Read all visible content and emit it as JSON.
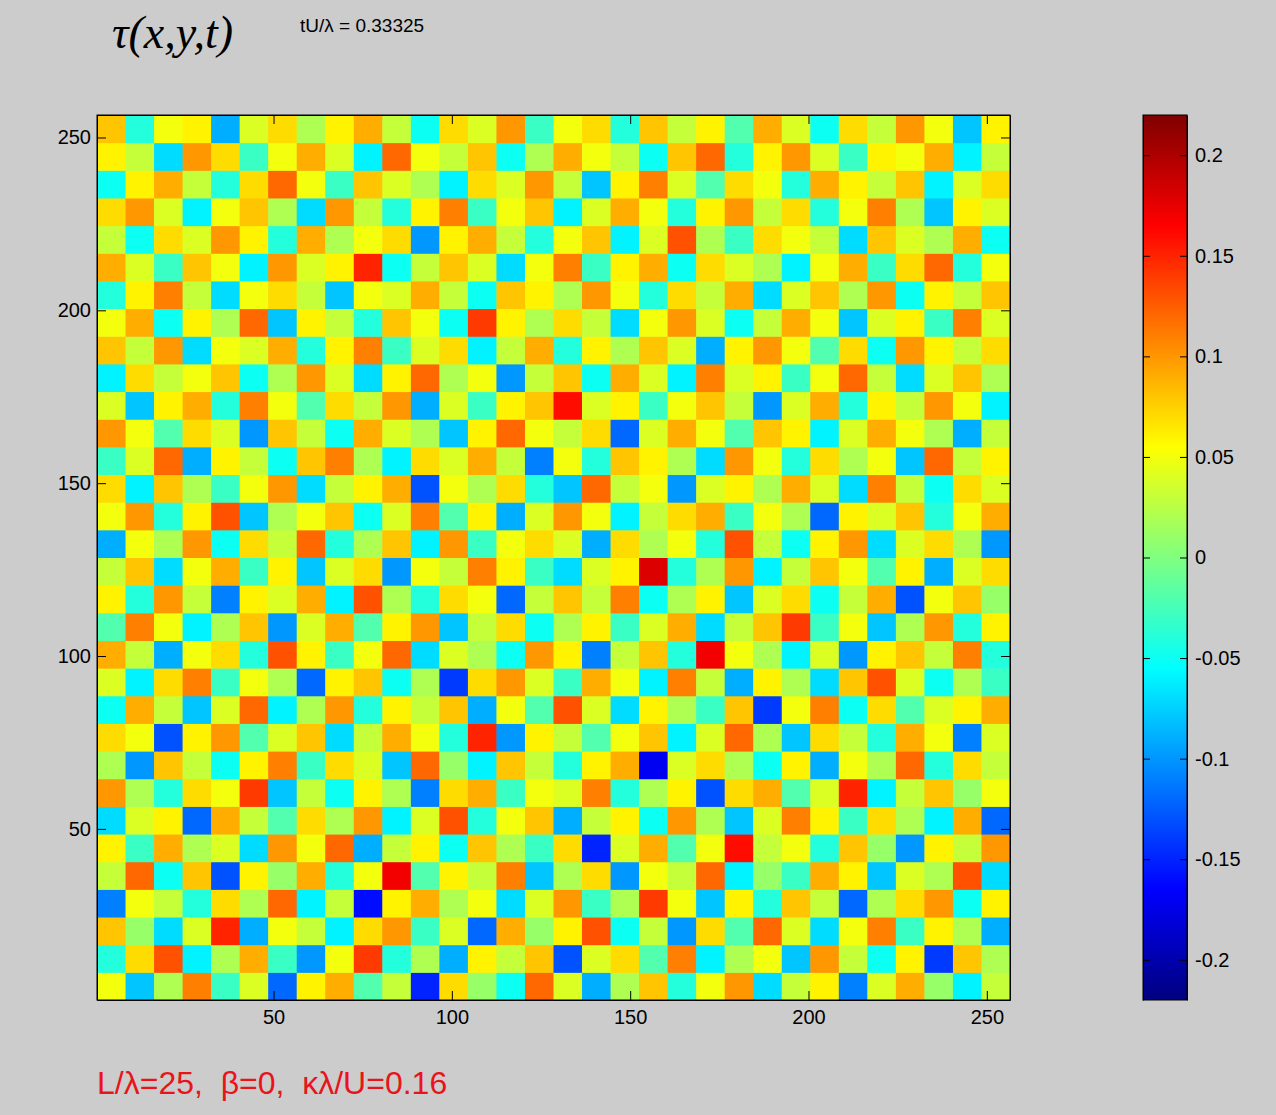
{
  "chart_data": {
    "type": "heatmap",
    "title": "τ(x,y,t)",
    "subtitle": "tU/λ = 0.33325",
    "annotation": "L/λ=25,  β=0,  κλ/U=0.16",
    "xlim": [
      0.5,
      256.5
    ],
    "xticks": [
      50,
      100,
      150,
      200,
      250
    ],
    "ylim": [
      0.5,
      256.5
    ],
    "yticks": [
      50,
      100,
      150,
      200,
      250
    ],
    "x": [
      4.5,
      12.5,
      20.5,
      28.5,
      36.5,
      44.5,
      52.5,
      60.5,
      68.5,
      76.5,
      84.5,
      92.5,
      100.5,
      108.5,
      116.5,
      124.5,
      132.5,
      140.5,
      148.5,
      156.5,
      164.5,
      172.5,
      180.5,
      188.5,
      196.5,
      204.5,
      212.5,
      220.5,
      228.5,
      236.5,
      244.5,
      252.5
    ],
    "y": [
      4.5,
      12.5,
      20.5,
      28.5,
      36.5,
      44.5,
      52.5,
      60.5,
      68.5,
      76.5,
      84.5,
      92.5,
      100.5,
      108.5,
      116.5,
      124.5,
      132.5,
      140.5,
      148.5,
      156.5,
      164.5,
      172.5,
      180.5,
      188.5,
      196.5,
      204.5,
      212.5,
      220.5,
      228.5,
      236.5,
      244.5,
      252.5
    ],
    "cells": [
      [
        0.05,
        -0.08,
        0.02,
        0.11,
        -0.03,
        0.04,
        -0.12,
        0.06,
        0.09,
        -0.02,
        0.03,
        -0.15,
        0.07,
        0.01,
        -0.05,
        0.12,
        0.04,
        -0.09,
        0.02,
        0.08,
        -0.04,
        0.05,
        0.1,
        -0.07,
        0.03,
        0.06,
        -0.11,
        0.04,
        0.09,
        0.01,
        -0.06,
        0.03
      ],
      [
        -0.04,
        0.07,
        0.13,
        -0.06,
        0.02,
        0.09,
        -0.03,
        -0.1,
        0.05,
        0.14,
        -0.04,
        0.02,
        -0.09,
        0.06,
        0.03,
        0.08,
        -0.13,
        0.04,
        0.07,
        -0.02,
        0.11,
        -0.06,
        0.02,
        0.05,
        -0.08,
        0.1,
        0.03,
        -0.05,
        0.06,
        -0.14,
        0.08,
        0.02
      ],
      [
        0.08,
        0.01,
        -0.07,
        0.04,
        0.15,
        -0.09,
        0.05,
        0.03,
        -0.06,
        0.07,
        0.1,
        -0.03,
        0.04,
        -0.12,
        0.09,
        0.01,
        0.06,
        0.13,
        -0.05,
        0.03,
        -0.1,
        0.07,
        -0.02,
        0.12,
        0.04,
        -0.07,
        0.05,
        0.11,
        -0.03,
        0.06,
        0.02,
        -0.09
      ],
      [
        -0.11,
        0.05,
        0.03,
        -0.04,
        0.07,
        0.02,
        0.12,
        -0.06,
        0.03,
        -0.16,
        0.06,
        0.09,
        0.02,
        0.05,
        -0.07,
        0.04,
        0.1,
        -0.03,
        0.02,
        0.14,
        0.05,
        -0.08,
        0.06,
        -0.04,
        0.08,
        0.03,
        -0.12,
        0.02,
        0.07,
        0.1,
        -0.05,
        0.06
      ],
      [
        0.03,
        0.12,
        -0.05,
        0.08,
        -0.13,
        0.06,
        0.01,
        0.09,
        -0.04,
        0.05,
        0.17,
        -0.02,
        0.06,
        0.03,
        0.11,
        -0.08,
        0.02,
        0.07,
        -0.1,
        0.05,
        0.03,
        0.12,
        -0.06,
        0.01,
        -0.03,
        0.09,
        0.06,
        -0.08,
        0.04,
        0.02,
        0.13,
        -0.07
      ],
      [
        0.06,
        -0.03,
        0.09,
        0.02,
        0.04,
        -0.07,
        0.1,
        0.05,
        0.12,
        -0.09,
        0.03,
        0.06,
        -0.05,
        0.08,
        0.02,
        -0.03,
        0.07,
        -0.15,
        0.04,
        0.09,
        -0.02,
        0.05,
        0.16,
        0.03,
        0.05,
        -0.04,
        0.08,
        0.01,
        -0.1,
        0.06,
        0.03,
        0.1
      ],
      [
        -0.07,
        0.04,
        0.06,
        -0.12,
        0.09,
        0.03,
        -0.02,
        0.07,
        0.02,
        0.1,
        -0.06,
        0.04,
        0.13,
        -0.04,
        0.05,
        0.08,
        -0.09,
        0.03,
        0.06,
        -0.05,
        0.1,
        0.02,
        -0.08,
        0.04,
        0.11,
        0.06,
        -0.03,
        0.07,
        0.02,
        -0.06,
        0.09,
        -0.12
      ],
      [
        0.1,
        0.02,
        -0.04,
        0.07,
        0.05,
        0.14,
        -0.08,
        0.03,
        -0.05,
        0.06,
        0.02,
        -0.11,
        0.07,
        0.09,
        -0.03,
        0.05,
        0.04,
        0.11,
        -0.04,
        0.02,
        0.06,
        -0.13,
        0.07,
        0.09,
        -0.02,
        0.04,
        0.15,
        -0.06,
        0.03,
        0.08,
        0.01,
        0.05
      ],
      [
        0.02,
        -0.1,
        0.08,
        0.03,
        -0.05,
        0.06,
        0.11,
        -0.03,
        0.07,
        0.04,
        -0.08,
        0.12,
        0.01,
        -0.06,
        0.08,
        0.03,
        -0.04,
        0.06,
        0.09,
        -0.17,
        0.04,
        0.07,
        0.02,
        -0.05,
        0.06,
        -0.09,
        0.05,
        0.02,
        0.12,
        -0.04,
        0.07,
        0.03
      ],
      [
        0.07,
        0.05,
        -0.13,
        0.06,
        0.1,
        -0.02,
        0.04,
        0.08,
        -0.07,
        0.03,
        0.09,
        0.05,
        -0.04,
        0.15,
        -0.1,
        0.06,
        0.03,
        -0.02,
        0.05,
        0.08,
        -0.06,
        0.04,
        0.12,
        0.02,
        -0.08,
        0.07,
        0.03,
        -0.04,
        0.09,
        0.05,
        -0.11,
        0.04
      ],
      [
        -0.05,
        0.09,
        0.03,
        -0.08,
        0.04,
        0.12,
        -0.06,
        0.02,
        0.1,
        -0.04,
        0.06,
        0.03,
        0.08,
        -0.09,
        0.05,
        -0.02,
        0.13,
        0.04,
        -0.07,
        0.06,
        0.02,
        -0.03,
        0.08,
        -0.14,
        0.05,
        0.11,
        -0.05,
        0.07,
        -0.02,
        0.04,
        0.06,
        0.09
      ],
      [
        0.04,
        -0.06,
        0.07,
        0.11,
        -0.03,
        0.05,
        0.02,
        -0.12,
        0.06,
        0.08,
        -0.05,
        0.02,
        -0.14,
        0.07,
        0.1,
        0.04,
        -0.03,
        0.09,
        0.05,
        -0.06,
        0.11,
        0.03,
        -0.09,
        0.06,
        0.02,
        -0.07,
        0.08,
        0.13,
        0.04,
        -0.05,
        0.02,
        -0.03
      ],
      [
        0.09,
        0.03,
        -0.09,
        0.05,
        0.07,
        -0.04,
        0.13,
        0.06,
        -0.03,
        0.05,
        0.12,
        -0.07,
        0.04,
        0.02,
        -0.05,
        0.1,
        0.06,
        -0.11,
        0.03,
        0.08,
        -0.04,
        0.17,
        0.05,
        0.02,
        -0.06,
        0.04,
        -0.1,
        0.06,
        0.08,
        0.03,
        0.11,
        -0.04
      ],
      [
        -0.02,
        0.11,
        0.05,
        -0.06,
        0.02,
        0.08,
        -0.1,
        0.04,
        0.09,
        -0.02,
        0.06,
        0.1,
        -0.08,
        0.03,
        0.07,
        -0.05,
        0.02,
        0.06,
        -0.03,
        0.04,
        0.09,
        -0.07,
        0.03,
        0.08,
        0.14,
        -0.03,
        0.05,
        -0.08,
        0.02,
        0.1,
        -0.04,
        0.06
      ],
      [
        0.06,
        -0.04,
        0.1,
        0.03,
        -0.11,
        0.06,
        0.04,
        0.09,
        -0.06,
        0.13,
        0.02,
        -0.04,
        0.07,
        0.05,
        -0.12,
        0.03,
        0.08,
        0.03,
        0.11,
        -0.05,
        0.02,
        0.06,
        -0.08,
        0.04,
        0.07,
        -0.05,
        0.03,
        0.09,
        -0.13,
        0.05,
        0.08,
        0.01
      ],
      [
        0.03,
        0.08,
        -0.07,
        0.05,
        0.09,
        -0.03,
        0.06,
        -0.08,
        0.04,
        0.07,
        -0.1,
        0.05,
        0.03,
        0.11,
        0.06,
        -0.03,
        -0.07,
        0.04,
        0.06,
        0.18,
        -0.04,
        0.02,
        0.1,
        -0.06,
        0.03,
        0.08,
        0.05,
        -0.02,
        0.06,
        -0.09,
        0.04,
        0.07
      ],
      [
        -0.09,
        0.05,
        0.02,
        0.1,
        -0.05,
        0.07,
        0.03,
        0.12,
        -0.04,
        0.02,
        0.08,
        -0.06,
        0.1,
        -0.03,
        0.05,
        0.07,
        0.04,
        -0.09,
        0.07,
        0.02,
        0.05,
        -0.04,
        0.13,
        0.03,
        -0.05,
        0.06,
        0.1,
        -0.07,
        0.04,
        0.07,
        0.02,
        -0.1
      ],
      [
        0.05,
        0.1,
        -0.04,
        0.06,
        0.13,
        -0.08,
        0.02,
        0.05,
        0.08,
        -0.05,
        0.04,
        0.11,
        -0.02,
        0.06,
        -0.09,
        0.04,
        0.1,
        0.05,
        -0.06,
        0.03,
        0.07,
        0.09,
        -0.03,
        0.05,
        0.02,
        -0.12,
        0.06,
        0.04,
        0.08,
        -0.04,
        0.05,
        0.09
      ],
      [
        0.07,
        -0.06,
        0.08,
        0.02,
        -0.03,
        0.05,
        0.1,
        -0.07,
        0.03,
        0.06,
        0.09,
        -0.13,
        0.05,
        0.02,
        0.07,
        -0.04,
        -0.08,
        0.12,
        0.03,
        0.05,
        -0.1,
        0.04,
        0.06,
        0.02,
        0.09,
        0.04,
        -0.07,
        0.11,
        0.03,
        -0.05,
        0.07,
        0.04
      ],
      [
        -0.03,
        0.04,
        0.12,
        -0.09,
        0.06,
        0.03,
        -0.05,
        0.08,
        0.11,
        0.02,
        -0.06,
        0.07,
        0.04,
        0.09,
        0.03,
        -0.11,
        0.05,
        -0.04,
        0.08,
        0.06,
        0.02,
        -0.07,
        0.1,
        0.05,
        -0.04,
        0.07,
        0.02,
        0.05,
        -0.08,
        0.12,
        0.03,
        0.06
      ],
      [
        0.1,
        0.05,
        -0.02,
        0.07,
        0.04,
        -0.1,
        0.08,
        0.03,
        -0.05,
        0.09,
        0.04,
        0.02,
        -0.08,
        0.06,
        0.12,
        0.05,
        0.03,
        0.07,
        -0.12,
        0.04,
        0.09,
        0.05,
        -0.02,
        0.08,
        0.06,
        -0.06,
        0.04,
        0.09,
        0.05,
        0.02,
        -0.09,
        0.03
      ],
      [
        0.04,
        -0.08,
        0.06,
        0.09,
        -0.04,
        0.11,
        0.05,
        -0.02,
        0.07,
        0.03,
        0.1,
        -0.09,
        0.04,
        -0.03,
        0.06,
        0.08,
        0.16,
        0.04,
        0.06,
        -0.03,
        0.05,
        0.08,
        0.03,
        -0.1,
        0.04,
        0.09,
        -0.04,
        0.06,
        0.03,
        0.1,
        0.05,
        -0.06
      ],
      [
        -0.06,
        0.07,
        0.03,
        0.05,
        0.08,
        -0.05,
        0.02,
        0.1,
        0.04,
        -0.07,
        0.06,
        0.12,
        0.02,
        0.05,
        -0.1,
        0.03,
        0.08,
        -0.05,
        0.09,
        0.04,
        -0.06,
        0.11,
        0.04,
        0.06,
        -0.03,
        0.05,
        0.12,
        0.03,
        -0.07,
        0.04,
        0.08,
        0.02
      ],
      [
        0.08,
        0.03,
        0.1,
        -0.07,
        0.05,
        0.04,
        0.09,
        -0.04,
        0.06,
        0.11,
        -0.03,
        0.04,
        0.07,
        -0.06,
        0.03,
        0.09,
        -0.04,
        0.06,
        0.02,
        0.08,
        0.04,
        -0.09,
        0.06,
        0.1,
        0.05,
        -0.02,
        0.07,
        -0.05,
        0.1,
        0.06,
        0.03,
        0.07
      ],
      [
        0.05,
        0.09,
        -0.05,
        0.06,
        0.02,
        0.12,
        -0.08,
        0.06,
        0.03,
        -0.04,
        0.08,
        0.05,
        -0.05,
        0.14,
        0.06,
        0.02,
        0.07,
        0.03,
        -0.07,
        0.05,
        0.1,
        0.04,
        -0.05,
        0.03,
        0.09,
        0.05,
        -0.08,
        0.04,
        0.06,
        -0.03,
        0.11,
        0.04
      ],
      [
        -0.04,
        0.06,
        0.11,
        0.03,
        -0.07,
        0.05,
        0.07,
        0.03,
        -0.08,
        0.05,
        0.04,
        0.09,
        0.03,
        -0.05,
        0.08,
        0.06,
        0.02,
        0.1,
        0.05,
        -0.04,
        0.07,
        0.03,
        0.09,
        -0.07,
        0.04,
        0.08,
        0.02,
        0.1,
        -0.05,
        0.06,
        0.03,
        0.08
      ],
      [
        0.09,
        0.04,
        -0.03,
        0.08,
        0.05,
        -0.06,
        0.1,
        0.04,
        0.06,
        0.15,
        -0.05,
        0.03,
        0.08,
        0.04,
        -0.07,
        0.05,
        0.11,
        -0.03,
        0.06,
        0.09,
        -0.05,
        0.07,
        0.04,
        0.02,
        -0.06,
        0.05,
        0.09,
        -0.03,
        0.07,
        0.12,
        -0.04,
        0.05
      ],
      [
        0.03,
        -0.05,
        0.07,
        0.04,
        0.1,
        0.06,
        -0.04,
        0.09,
        0.02,
        0.05,
        0.07,
        -0.1,
        0.06,
        0.09,
        0.03,
        -0.04,
        0.05,
        0.08,
        -0.06,
        0.04,
        0.13,
        0.02,
        -0.03,
        0.07,
        0.05,
        0.03,
        -0.07,
        0.08,
        0.04,
        0.02,
        0.09,
        -0.05
      ],
      [
        0.07,
        0.1,
        0.04,
        -0.06,
        0.05,
        0.08,
        0.02,
        -0.07,
        0.1,
        0.03,
        -0.04,
        0.06,
        0.11,
        -0.03,
        0.05,
        0.08,
        -0.06,
        0.04,
        0.09,
        0.05,
        -0.04,
        0.06,
        0.1,
        0.03,
        0.07,
        -0.04,
        0.05,
        0.11,
        0.02,
        -0.08,
        0.06,
        0.04
      ],
      [
        -0.05,
        0.06,
        0.09,
        0.03,
        -0.04,
        0.07,
        0.12,
        0.05,
        -0.03,
        0.08,
        0.04,
        0.02,
        -0.06,
        0.07,
        0.04,
        0.1,
        0.03,
        -0.08,
        0.06,
        0.11,
        0.04,
        -0.02,
        0.07,
        0.05,
        -0.04,
        0.09,
        0.06,
        0.03,
        0.08,
        -0.06,
        0.04,
        0.07
      ],
      [
        0.06,
        0.03,
        -0.07,
        0.1,
        0.07,
        -0.03,
        0.05,
        0.09,
        0.04,
        -0.06,
        0.12,
        0.05,
        0.03,
        0.08,
        -0.05,
        0.02,
        0.09,
        0.05,
        0.03,
        -0.05,
        0.08,
        0.12,
        -0.04,
        0.06,
        0.1,
        0.04,
        -0.03,
        0.06,
        0.05,
        0.09,
        -0.06,
        0.03
      ],
      [
        0.08,
        -0.04,
        0.05,
        0.06,
        -0.09,
        0.04,
        0.07,
        0.02,
        0.06,
        0.09,
        0.03,
        -0.05,
        0.07,
        0.04,
        0.1,
        -0.03,
        0.05,
        0.07,
        -0.04,
        0.08,
        0.03,
        0.06,
        -0.02,
        0.09,
        0.04,
        -0.05,
        0.07,
        0.03,
        0.1,
        0.05,
        -0.08,
        0.06
      ]
    ],
    "color_range": [
      -0.22,
      0.22
    ],
    "color_ticks": [
      -0.2,
      -0.15,
      -0.1,
      -0.05,
      0,
      0.05,
      0.1,
      0.15,
      0.2
    ]
  }
}
